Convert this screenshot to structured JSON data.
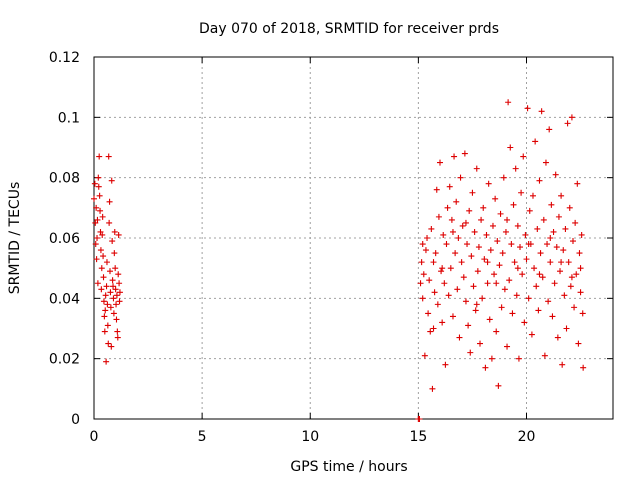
{
  "chart_data": {
    "type": "scatter",
    "title": "Day 070 of 2018, SRMTID for receiver prds",
    "xlabel": "GPS time / hours",
    "ylabel": "SRMTID / TECUs",
    "xlim": [
      0,
      24
    ],
    "ylim": [
      0,
      0.12
    ],
    "xticks": [
      0,
      5,
      10,
      15,
      20
    ],
    "xtick_labels": [
      "0",
      "5",
      "10",
      "15",
      "20"
    ],
    "yticks": [
      0,
      0.02,
      0.04,
      0.06,
      0.08,
      0.1,
      0.12
    ],
    "ytick_labels": [
      "0",
      "0.02",
      "0.04",
      "0.06",
      "0.08",
      "0.1",
      "0.12"
    ],
    "grid": true,
    "marker": "plus",
    "color": "#dd0000",
    "series": [
      {
        "name": "SRMTID",
        "points": [
          [
            0.0,
            0.073
          ],
          [
            0.04,
            0.078
          ],
          [
            0.06,
            0.065
          ],
          [
            0.08,
            0.058
          ],
          [
            0.1,
            0.07
          ],
          [
            0.12,
            0.053
          ],
          [
            0.14,
            0.06
          ],
          [
            0.16,
            0.066
          ],
          [
            0.18,
            0.045
          ],
          [
            0.2,
            0.08
          ],
          [
            0.22,
            0.077
          ],
          [
            0.24,
            0.087
          ],
          [
            0.26,
            0.074
          ],
          [
            0.28,
            0.069
          ],
          [
            0.3,
            0.062
          ],
          [
            0.32,
            0.056
          ],
          [
            0.34,
            0.043
          ],
          [
            0.36,
            0.05
          ],
          [
            0.38,
            0.061
          ],
          [
            0.4,
            0.067
          ],
          [
            0.42,
            0.054
          ],
          [
            0.44,
            0.047
          ],
          [
            0.46,
            0.039
          ],
          [
            0.48,
            0.034
          ],
          [
            0.5,
            0.029
          ],
          [
            0.52,
            0.036
          ],
          [
            0.54,
            0.041
          ],
          [
            0.56,
            0.019
          ],
          [
            0.58,
            0.044
          ],
          [
            0.6,
            0.052
          ],
          [
            0.62,
            0.038
          ],
          [
            0.64,
            0.031
          ],
          [
            0.66,
            0.025
          ],
          [
            0.68,
            0.087
          ],
          [
            0.7,
            0.065
          ],
          [
            0.72,
            0.072
          ],
          [
            0.74,
            0.049
          ],
          [
            0.76,
            0.042
          ],
          [
            0.78,
            0.037
          ],
          [
            0.8,
            0.024
          ],
          [
            0.82,
            0.079
          ],
          [
            0.84,
            0.059
          ],
          [
            0.86,
            0.046
          ],
          [
            0.88,
            0.044
          ],
          [
            0.9,
            0.04
          ],
          [
            0.92,
            0.035
          ],
          [
            0.94,
            0.055
          ],
          [
            0.96,
            0.062
          ],
          [
            0.98,
            0.05
          ],
          [
            1.0,
            0.043
          ],
          [
            1.02,
            0.038
          ],
          [
            1.04,
            0.033
          ],
          [
            1.06,
            0.041
          ],
          [
            1.08,
            0.029
          ],
          [
            1.1,
            0.027
          ],
          [
            1.12,
            0.048
          ],
          [
            1.14,
            0.061
          ],
          [
            1.16,
            0.045
          ],
          [
            1.18,
            0.039
          ],
          [
            1.2,
            0.042
          ],
          [
            15.0,
            0.0
          ],
          [
            15.05,
            0.0
          ],
          [
            15.1,
            0.045
          ],
          [
            15.15,
            0.052
          ],
          [
            15.2,
            0.04
          ],
          [
            15.25,
            0.048
          ],
          [
            15.3,
            0.021
          ],
          [
            15.35,
            0.056
          ],
          [
            15.4,
            0.06
          ],
          [
            15.45,
            0.035
          ],
          [
            15.5,
            0.046
          ],
          [
            15.55,
            0.029
          ],
          [
            15.6,
            0.063
          ],
          [
            15.65,
            0.01
          ],
          [
            15.7,
            0.052
          ],
          [
            15.75,
            0.042
          ],
          [
            15.8,
            0.055
          ],
          [
            15.85,
            0.076
          ],
          [
            15.9,
            0.038
          ],
          [
            15.95,
            0.067
          ],
          [
            16.0,
            0.085
          ],
          [
            16.05,
            0.049
          ],
          [
            16.1,
            0.032
          ],
          [
            16.15,
            0.061
          ],
          [
            16.2,
            0.045
          ],
          [
            16.25,
            0.018
          ],
          [
            16.3,
            0.058
          ],
          [
            16.35,
            0.07
          ],
          [
            16.4,
            0.041
          ],
          [
            16.45,
            0.077
          ],
          [
            16.5,
            0.05
          ],
          [
            16.55,
            0.066
          ],
          [
            16.6,
            0.034
          ],
          [
            16.65,
            0.087
          ],
          [
            16.7,
            0.055
          ],
          [
            16.75,
            0.072
          ],
          [
            16.8,
            0.043
          ],
          [
            16.85,
            0.06
          ],
          [
            16.9,
            0.027
          ],
          [
            16.95,
            0.08
          ],
          [
            17.0,
            0.052
          ],
          [
            17.05,
            0.064
          ],
          [
            17.1,
            0.047
          ],
          [
            17.15,
            0.088
          ],
          [
            17.2,
            0.039
          ],
          [
            17.25,
            0.058
          ],
          [
            17.3,
            0.031
          ],
          [
            17.35,
            0.069
          ],
          [
            17.4,
            0.022
          ],
          [
            17.45,
            0.054
          ],
          [
            17.5,
            0.075
          ],
          [
            17.55,
            0.044
          ],
          [
            17.6,
            0.062
          ],
          [
            17.65,
            0.036
          ],
          [
            17.7,
            0.083
          ],
          [
            17.75,
            0.049
          ],
          [
            17.8,
            0.057
          ],
          [
            17.85,
            0.025
          ],
          [
            17.9,
            0.066
          ],
          [
            17.95,
            0.04
          ],
          [
            18.0,
            0.07
          ],
          [
            18.05,
            0.053
          ],
          [
            18.1,
            0.017
          ],
          [
            18.15,
            0.061
          ],
          [
            18.2,
            0.045
          ],
          [
            18.25,
            0.078
          ],
          [
            18.3,
            0.033
          ],
          [
            18.35,
            0.056
          ],
          [
            18.4,
            0.02
          ],
          [
            18.45,
            0.064
          ],
          [
            18.5,
            0.048
          ],
          [
            18.55,
            0.073
          ],
          [
            18.6,
            0.029
          ],
          [
            18.65,
            0.059
          ],
          [
            18.7,
            0.011
          ],
          [
            18.75,
            0.051
          ],
          [
            18.8,
            0.068
          ],
          [
            18.85,
            0.037
          ],
          [
            18.9,
            0.055
          ],
          [
            18.95,
            0.08
          ],
          [
            19.0,
            0.043
          ],
          [
            19.05,
            0.062
          ],
          [
            19.1,
            0.024
          ],
          [
            19.15,
            0.105
          ],
          [
            19.2,
            0.046
          ],
          [
            19.25,
            0.09
          ],
          [
            19.3,
            0.058
          ],
          [
            19.35,
            0.035
          ],
          [
            19.4,
            0.071
          ],
          [
            19.45,
            0.052
          ],
          [
            19.5,
            0.083
          ],
          [
            19.55,
            0.041
          ],
          [
            19.6,
            0.064
          ],
          [
            19.65,
            0.02
          ],
          [
            19.7,
            0.057
          ],
          [
            19.75,
            0.075
          ],
          [
            19.8,
            0.048
          ],
          [
            19.85,
            0.087
          ],
          [
            19.9,
            0.032
          ],
          [
            19.95,
            0.061
          ],
          [
            20.0,
            0.053
          ],
          [
            20.05,
            0.103
          ],
          [
            20.1,
            0.04
          ],
          [
            20.15,
            0.069
          ],
          [
            20.2,
            0.058
          ],
          [
            20.25,
            0.028
          ],
          [
            20.3,
            0.074
          ],
          [
            20.35,
            0.05
          ],
          [
            20.4,
            0.092
          ],
          [
            20.45,
            0.044
          ],
          [
            20.5,
            0.063
          ],
          [
            20.55,
            0.036
          ],
          [
            20.6,
            0.079
          ],
          [
            20.65,
            0.055
          ],
          [
            20.7,
            0.102
          ],
          [
            20.75,
            0.047
          ],
          [
            20.8,
            0.066
          ],
          [
            20.85,
            0.021
          ],
          [
            20.9,
            0.085
          ],
          [
            20.95,
            0.058
          ],
          [
            21.0,
            0.039
          ],
          [
            21.05,
            0.096
          ],
          [
            21.1,
            0.052
          ],
          [
            21.15,
            0.071
          ],
          [
            21.2,
            0.034
          ],
          [
            21.25,
            0.062
          ],
          [
            21.3,
            0.045
          ],
          [
            21.35,
            0.081
          ],
          [
            21.4,
            0.057
          ],
          [
            21.45,
            0.027
          ],
          [
            21.5,
            0.067
          ],
          [
            21.55,
            0.049
          ],
          [
            21.6,
            0.074
          ],
          [
            21.65,
            0.018
          ],
          [
            21.7,
            0.056
          ],
          [
            21.75,
            0.041
          ],
          [
            21.8,
            0.063
          ],
          [
            21.85,
            0.03
          ],
          [
            21.9,
            0.098
          ],
          [
            21.95,
            0.052
          ],
          [
            22.0,
            0.07
          ],
          [
            22.05,
            0.044
          ],
          [
            22.1,
            0.1
          ],
          [
            22.15,
            0.059
          ],
          [
            22.2,
            0.037
          ],
          [
            22.25,
            0.065
          ],
          [
            22.3,
            0.048
          ],
          [
            22.35,
            0.078
          ],
          [
            22.4,
            0.025
          ],
          [
            22.45,
            0.055
          ],
          [
            22.5,
            0.042
          ],
          [
            22.55,
            0.061
          ],
          [
            22.6,
            0.035
          ],
          [
            22.62,
            0.017
          ],
          [
            15.2,
            0.058
          ],
          [
            15.7,
            0.03
          ],
          [
            16.1,
            0.05
          ],
          [
            16.6,
            0.062
          ],
          [
            17.2,
            0.065
          ],
          [
            17.7,
            0.038
          ],
          [
            18.2,
            0.052
          ],
          [
            18.6,
            0.045
          ],
          [
            19.1,
            0.066
          ],
          [
            19.6,
            0.05
          ],
          [
            20.1,
            0.058
          ],
          [
            20.6,
            0.048
          ],
          [
            21.1,
            0.06
          ],
          [
            21.6,
            0.052
          ],
          [
            22.1,
            0.047
          ],
          [
            22.5,
            0.05
          ]
        ]
      }
    ]
  }
}
